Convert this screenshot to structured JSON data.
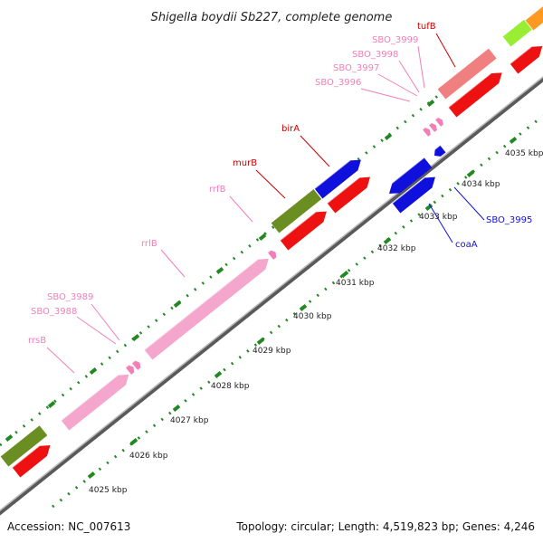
{
  "title": "Shigella boydii Sb227, complete genome",
  "footer": {
    "accession": "Accession: NC_007613",
    "topology": "Topology: circular; Length: 4,519,823 bp; Genes: 4,246"
  },
  "colors": {
    "rna": "#f4a6cc",
    "rna_small": "#f27fb8",
    "cds_red": "#ee1111",
    "cds_blue": "#1010dd",
    "cds_olive": "#6b8e23",
    "salmon": "#f08080",
    "orange": "#ff9922",
    "lime": "#99ee33",
    "tick": "#228822",
    "backbone": "#888888"
  },
  "scale_labels": [
    "4025 kbp",
    "4026 kbp",
    "4027 kbp",
    "4028 kbp",
    "4029 kbp",
    "4030 kbp",
    "4031 kbp",
    "4032 kbp",
    "4033 kbp",
    "4034 kbp",
    "4035 kbp"
  ],
  "gene_labels": [
    {
      "text": "rrsB",
      "color": "#f27fb8"
    },
    {
      "text": "SBO_3988",
      "color": "#f27fb8"
    },
    {
      "text": "SBO_3989",
      "color": "#f27fb8"
    },
    {
      "text": "rrlB",
      "color": "#f27fb8"
    },
    {
      "text": "rrfB",
      "color": "#f27fb8"
    },
    {
      "text": "murB",
      "color": "#cc0000"
    },
    {
      "text": "birA",
      "color": "#cc0000"
    },
    {
      "text": "SBO_3996",
      "color": "#f27fb8"
    },
    {
      "text": "SBO_3997",
      "color": "#f27fb8"
    },
    {
      "text": "SBO_3998",
      "color": "#f27fb8"
    },
    {
      "text": "SBO_3999",
      "color": "#f27fb8"
    },
    {
      "text": "tufB",
      "color": "#cc0000"
    },
    {
      "text": "coaA",
      "color": "#1010dd"
    },
    {
      "text": "SBO_3995",
      "color": "#1010dd"
    }
  ]
}
